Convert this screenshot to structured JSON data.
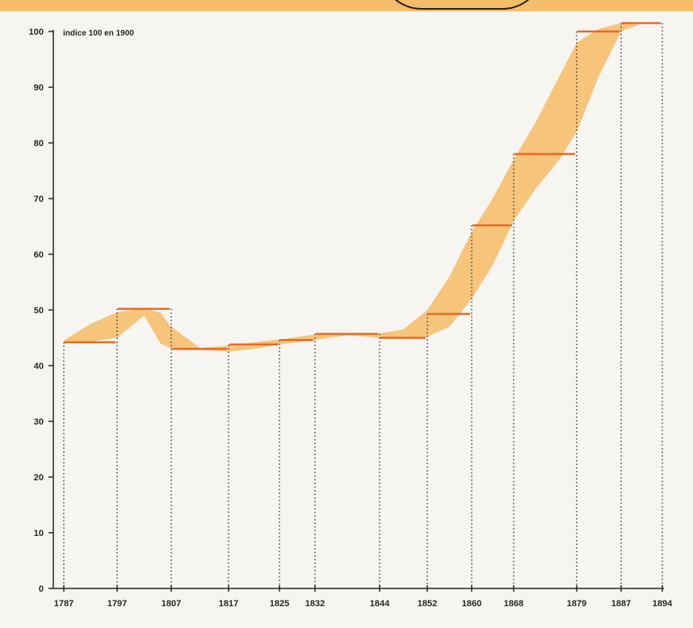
{
  "chart_data": {
    "type": "line",
    "title": "",
    "ylabel": "indice 100 en 1900",
    "xlabel": "",
    "ylim": [
      0,
      100
    ],
    "yticks": [
      0,
      10,
      20,
      30,
      40,
      50,
      60,
      70,
      80,
      90,
      100
    ],
    "x_ticks": [
      "1787",
      "1797",
      "1807",
      "1817",
      "1825",
      "1832",
      "1844",
      "1852",
      "1860",
      "1868",
      "1879",
      "1887",
      "1894"
    ],
    "series": [
      {
        "kind": "period-average",
        "segments": [
          {
            "from": "1787",
            "to": "1797",
            "value": 44.2
          },
          {
            "from": "1797",
            "to": "1807",
            "value": 50.2
          },
          {
            "from": "1807",
            "to": "1817",
            "value": 43.0
          },
          {
            "from": "1817",
            "to": "1825",
            "value": 43.8
          },
          {
            "from": "1825",
            "to": "1832",
            "value": 44.6
          },
          {
            "from": "1832",
            "to": "1844",
            "value": 45.7
          },
          {
            "from": "1844",
            "to": "1852",
            "value": 45.0
          },
          {
            "from": "1852",
            "to": "1860",
            "value": 49.3
          },
          {
            "from": "1860",
            "to": "1868",
            "value": 65.2
          },
          {
            "from": "1868",
            "to": "1879",
            "value": 78.0
          },
          {
            "from": "1879",
            "to": "1887",
            "value": 100.0
          },
          {
            "from": "1887",
            "to": "1894",
            "value": 101.5
          }
        ]
      },
      {
        "kind": "band",
        "points": [
          {
            "x": 1787,
            "low": 44.0,
            "high": 44.5
          },
          {
            "x": 1792,
            "low": 44.3,
            "high": 47.5
          },
          {
            "x": 1797,
            "low": 45.0,
            "high": 49.6
          },
          {
            "x": 1802,
            "low": 49.0,
            "high": 50.3
          },
          {
            "x": 1805,
            "low": 44.0,
            "high": 49.5
          },
          {
            "x": 1807,
            "low": 43.0,
            "high": 47.0
          },
          {
            "x": 1812,
            "low": 42.9,
            "high": 43.2
          },
          {
            "x": 1817,
            "low": 42.5,
            "high": 43.6
          },
          {
            "x": 1821,
            "low": 43.0,
            "high": 44.2
          },
          {
            "x": 1825,
            "low": 43.8,
            "high": 44.7
          },
          {
            "x": 1832,
            "low": 44.6,
            "high": 45.6
          },
          {
            "x": 1838,
            "low": 45.5,
            "high": 45.8
          },
          {
            "x": 1844,
            "low": 45.0,
            "high": 45.8
          },
          {
            "x": 1848,
            "low": 45.0,
            "high": 46.5
          },
          {
            "x": 1852,
            "low": 45.2,
            "high": 50.0
          },
          {
            "x": 1856,
            "low": 47.0,
            "high": 56.0
          },
          {
            "x": 1860,
            "low": 52.0,
            "high": 64.0
          },
          {
            "x": 1864,
            "low": 58.0,
            "high": 70.0
          },
          {
            "x": 1868,
            "low": 66.0,
            "high": 77.0
          },
          {
            "x": 1872,
            "low": 72.0,
            "high": 84.0
          },
          {
            "x": 1876,
            "low": 77.0,
            "high": 92.0
          },
          {
            "x": 1879,
            "low": 82.0,
            "high": 98.0
          },
          {
            "x": 1883,
            "low": 92.0,
            "high": 100.5
          },
          {
            "x": 1887,
            "low": 100.0,
            "high": 101.5
          },
          {
            "x": 1890,
            "low": 101.2,
            "high": 101.6
          }
        ]
      }
    ],
    "colors": {
      "band": "#f6c47a",
      "band_light": "#f8d79a",
      "average_line": "#e96a25",
      "axis": "#2a2722",
      "guide": "#2a2722",
      "banner": "#f3bd69"
    },
    "grid": false,
    "legend": "none"
  }
}
